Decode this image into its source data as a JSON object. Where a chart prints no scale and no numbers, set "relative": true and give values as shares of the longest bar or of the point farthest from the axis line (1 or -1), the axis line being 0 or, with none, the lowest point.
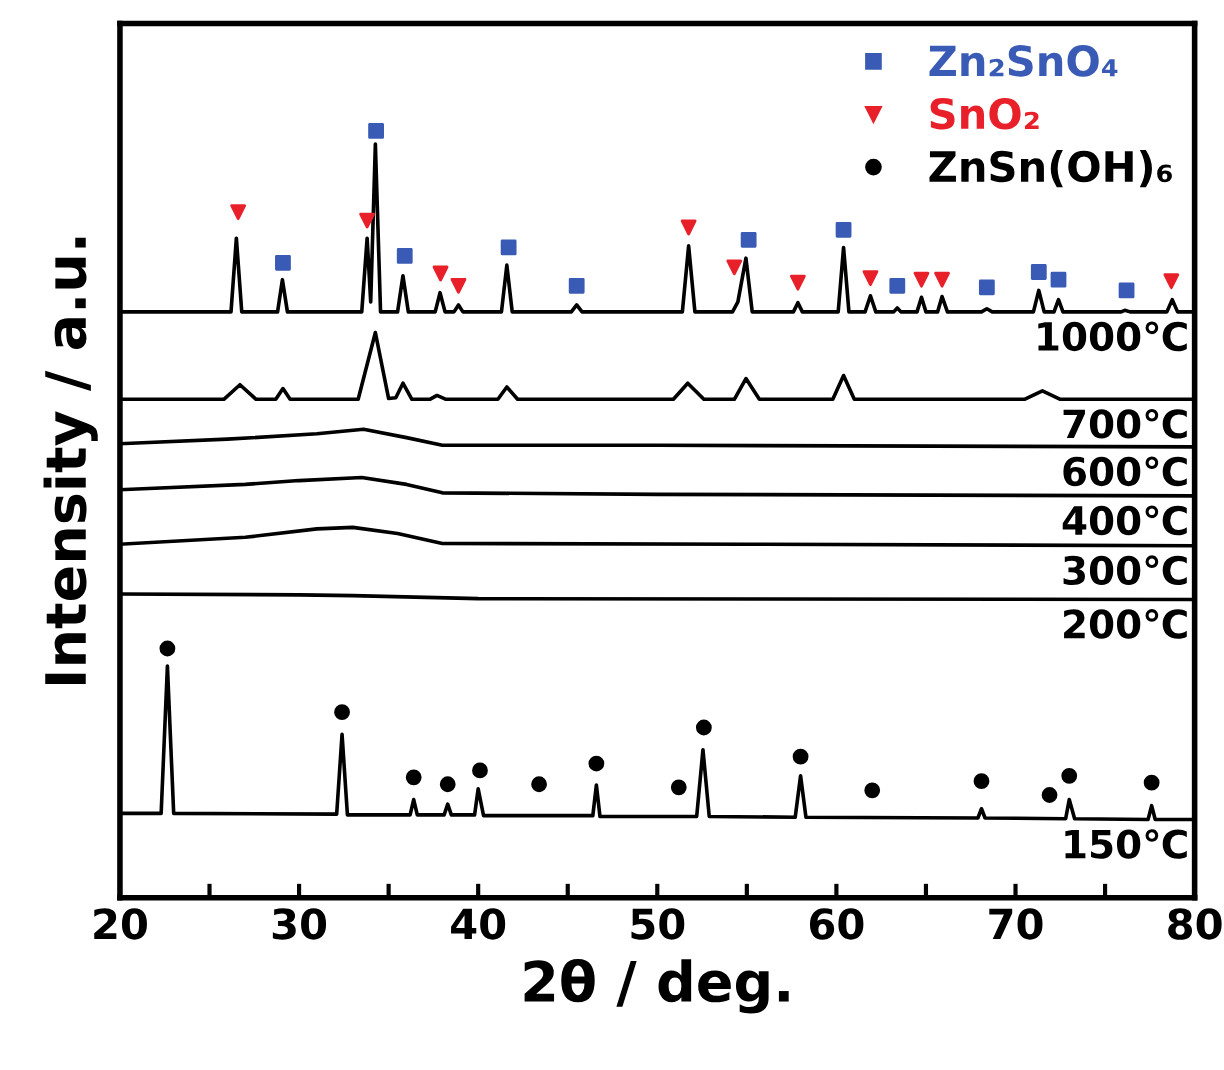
{
  "chart_data": {
    "type": "line",
    "relative": true,
    "xlabel": "2θ / deg.",
    "ylabel": "Intensity / a.u.",
    "xlim": [
      20,
      80
    ],
    "xticks": [
      20,
      {
        "value": 25,
        "label": null
      },
      30,
      {
        "value": 35,
        "label": null
      },
      40,
      {
        "value": 45,
        "label": null
      },
      50,
      {
        "value": 55,
        "label": null
      },
      60,
      {
        "value": 65,
        "label": null
      },
      70,
      {
        "value": 75,
        "label": null
      },
      80
    ],
    "tick_labels": "x",
    "grid": false,
    "legend": "top right",
    "line_style": "solid",
    "series": [
      {
        "name": "1000℃",
        "color": "#000000",
        "x": [
          20,
          26.2,
          26.5,
          26.8,
          28.8,
          29.07,
          29.35,
          33.5,
          33.8,
          34.0,
          34.26,
          34.55,
          35.5,
          35.8,
          36.1,
          37.6,
          37.87,
          38.15,
          38.65,
          38.9,
          39.15,
          41.3,
          41.6,
          41.9,
          45.2,
          45.5,
          45.8,
          51.4,
          51.75,
          52.1,
          54.2,
          54.5,
          54.95,
          55.3,
          57.6,
          57.85,
          58.1,
          60.1,
          60.4,
          60.7,
          61.6,
          61.9,
          62.2,
          63.2,
          63.4,
          63.6,
          64.5,
          64.75,
          65.0,
          65.65,
          65.9,
          66.2,
          68.1,
          68.4,
          68.7,
          71.0,
          71.3,
          71.6,
          72.15,
          72.4,
          72.65,
          75.9,
          76.1,
          76.4,
          78.45,
          78.75,
          79.05,
          80
        ],
        "values": [
          0.764,
          0.764,
          0.86,
          0.764,
          0.764,
          0.806,
          0.764,
          0.764,
          0.86,
          0.777,
          0.983,
          0.764,
          0.764,
          0.811,
          0.764,
          0.764,
          0.789,
          0.764,
          0.764,
          0.773,
          0.764,
          0.764,
          0.825,
          0.764,
          0.764,
          0.773,
          0.764,
          0.764,
          0.85,
          0.764,
          0.764,
          0.777,
          0.834,
          0.764,
          0.764,
          0.776,
          0.764,
          0.764,
          0.848,
          0.764,
          0.764,
          0.785,
          0.764,
          0.764,
          0.769,
          0.764,
          0.764,
          0.783,
          0.764,
          0.764,
          0.784,
          0.764,
          0.764,
          0.768,
          0.764,
          0.764,
          0.792,
          0.764,
          0.764,
          0.78,
          0.764,
          0.764,
          0.766,
          0.764,
          0.764,
          0.78,
          0.764,
          0.764
        ]
      },
      {
        "name": "700℃",
        "color": "#000000",
        "x": [
          20,
          25.8,
          26.7,
          27.6,
          28.7,
          29.1,
          29.5,
          33.3,
          34.26,
          35.0,
          35.4,
          35.8,
          36.3,
          37.3,
          37.7,
          38.2,
          41.1,
          41.6,
          42.2,
          50.9,
          51.7,
          52.6,
          54.3,
          54.95,
          55.7,
          59.8,
          60.4,
          61.0,
          70.5,
          71.5,
          72.5,
          80
        ],
        "values": [
          0.65,
          0.65,
          0.669,
          0.65,
          0.65,
          0.664,
          0.65,
          0.65,
          0.737,
          0.651,
          0.652,
          0.671,
          0.65,
          0.65,
          0.655,
          0.65,
          0.65,
          0.666,
          0.65,
          0.65,
          0.671,
          0.65,
          0.65,
          0.677,
          0.65,
          0.65,
          0.681,
          0.65,
          0.65,
          0.661,
          0.65,
          0.65
        ]
      },
      {
        "name": "600℃",
        "color": "#000000",
        "x": [
          20,
          26,
          31,
          33.6,
          36,
          38,
          50,
          80
        ],
        "values": [
          0.592,
          0.598,
          0.605,
          0.611,
          0.6,
          0.59,
          0.59,
          0.588
        ]
      },
      {
        "name": "400℃",
        "color": "#000000",
        "x": [
          20,
          27,
          30,
          33.5,
          36,
          38,
          50,
          80
        ],
        "values": [
          0.532,
          0.539,
          0.544,
          0.548,
          0.539,
          0.528,
          0.526,
          0.524
        ]
      },
      {
        "name": "300℃",
        "color": "#000000",
        "x": [
          20,
          27,
          31,
          33,
          35.5,
          38,
          55,
          80
        ],
        "values": [
          0.461,
          0.47,
          0.481,
          0.483,
          0.475,
          0.462,
          0.461,
          0.459
        ]
      },
      {
        "name": "200℃",
        "color": "#000000",
        "x": [
          20,
          30,
          33,
          40,
          80
        ],
        "values": [
          0.396,
          0.395,
          0.394,
          0.39,
          0.389
        ]
      },
      {
        "name": "150℃",
        "color": "#000000",
        "x": [
          20,
          22.3,
          22.65,
          23.0,
          32.1,
          32.4,
          32.7,
          36.2,
          36.4,
          36.6,
          38.1,
          38.3,
          38.5,
          39.8,
          40.0,
          40.3,
          46.4,
          46.6,
          46.8,
          52.2,
          52.55,
          52.9,
          57.7,
          58.0,
          58.3,
          67.9,
          68.1,
          68.3,
          72.8,
          73.0,
          73.3,
          77.4,
          77.6,
          77.8,
          80
        ],
        "values": [
          0.11,
          0.11,
          0.302,
          0.11,
          0.109,
          0.213,
          0.108,
          0.108,
          0.128,
          0.108,
          0.108,
          0.122,
          0.108,
          0.108,
          0.142,
          0.107,
          0.107,
          0.147,
          0.106,
          0.106,
          0.193,
          0.106,
          0.105,
          0.159,
          0.105,
          0.104,
          0.116,
          0.104,
          0.103,
          0.128,
          0.103,
          0.102,
          0.12,
          0.102,
          0.102
        ]
      },
      {
        "name": "Zn₂SnO₄",
        "type": "scatter",
        "marker": "square",
        "color": "#3a5bb5",
        "x": [
          29.1,
          34.3,
          35.9,
          41.7,
          45.5,
          55.1,
          60.4,
          63.4,
          68.4,
          71.3,
          72.4,
          76.2
        ],
        "values": [
          0.828,
          1.0,
          0.837,
          0.848,
          0.798,
          0.858,
          0.871,
          0.798,
          0.796,
          0.816,
          0.806,
          0.792
        ]
      },
      {
        "name": "SnO₂",
        "type": "scatter",
        "marker": "triangle",
        "color": "#e8202a",
        "x": [
          26.6,
          33.8,
          37.9,
          38.9,
          51.75,
          54.3,
          57.85,
          61.9,
          64.75,
          65.9,
          78.7
        ],
        "values": [
          0.894,
          0.883,
          0.814,
          0.798,
          0.874,
          0.822,
          0.802,
          0.808,
          0.806,
          0.806,
          0.804
        ]
      },
      {
        "name": "ZnSn(OH)₆",
        "type": "scatter",
        "marker": "circle",
        "color": "#000000",
        "x": [
          22.65,
          32.4,
          36.4,
          38.3,
          40.1,
          43.4,
          46.6,
          51.2,
          52.6,
          58.0,
          62.0,
          68.1,
          71.9,
          73.0,
          77.6
        ],
        "values": [
          0.325,
          0.242,
          0.157,
          0.148,
          0.166,
          0.148,
          0.175,
          0.144,
          0.222,
          0.184,
          0.14,
          0.152,
          0.134,
          0.159,
          0.15
        ]
      }
    ]
  }
}
